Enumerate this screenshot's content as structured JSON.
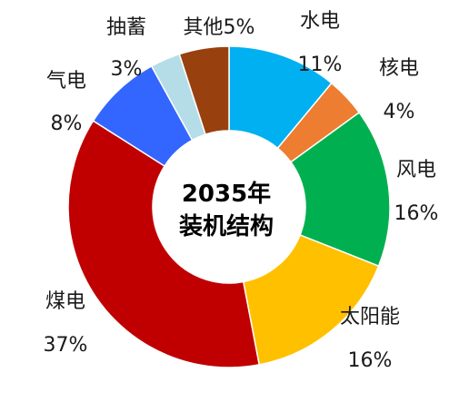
{
  "chart_data": {
    "type": "pie",
    "title": "2035年",
    "subtitle": "装机结构",
    "categories": [
      "水电",
      "核电",
      "风电",
      "太阳能",
      "煤电",
      "气电",
      "抽蓄",
      "其他"
    ],
    "values": [
      11,
      4,
      16,
      16,
      37,
      8,
      3,
      5
    ],
    "value_labels": [
      "11%",
      "4%",
      "16%",
      "16%",
      "37%",
      "8%",
      "3%",
      "5%"
    ],
    "colors": [
      "#00b0f0",
      "#ed7d31",
      "#00b050",
      "#ffc000",
      "#c00000",
      "#3366ff",
      "#b4dde8",
      "#99400f"
    ],
    "donut": true,
    "start": "top",
    "direction": "clockwise"
  }
}
